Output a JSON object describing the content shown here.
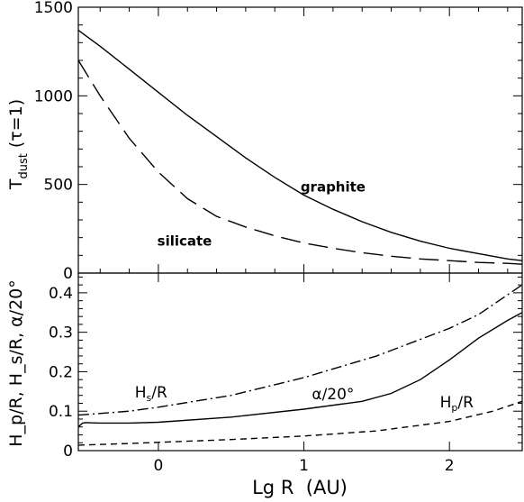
{
  "chart_data": [
    {
      "type": "line",
      "xlabel": "Lg R  (AU)",
      "ylabel": "T_dust (τ=1)",
      "ylabel_parts": {
        "main": "T",
        "sub": "dust",
        "rest": " (τ=1)"
      },
      "xlim": [
        -0.55,
        2.5
      ],
      "ylim": [
        0,
        1500
      ],
      "xticks_major": [
        0,
        1,
        2
      ],
      "xticks_minor": [
        -0.4,
        -0.2,
        0.2,
        0.4,
        0.6,
        0.8,
        1.2,
        1.4,
        1.6,
        1.8,
        2.2,
        2.4
      ],
      "yticks_major": [
        0,
        500,
        1000,
        1500
      ],
      "yticks_minor": [
        100,
        200,
        300,
        400,
        600,
        700,
        800,
        900,
        1100,
        1200,
        1300,
        1400
      ],
      "ytick_labels": [
        "0",
        "500",
        "1000",
        "1500"
      ],
      "series": [
        {
          "name": "graphite",
          "dash": "solid",
          "x": [
            -0.55,
            -0.4,
            -0.2,
            0.0,
            0.2,
            0.4,
            0.6,
            0.8,
            1.0,
            1.2,
            1.4,
            1.6,
            1.8,
            2.0,
            2.2,
            2.4,
            2.5
          ],
          "y": [
            1370,
            1280,
            1150,
            1020,
            890,
            770,
            650,
            540,
            440,
            360,
            290,
            230,
            180,
            140,
            110,
            80,
            70
          ]
        },
        {
          "name": "silicate",
          "dash": "long-dash",
          "x": [
            -0.55,
            -0.4,
            -0.2,
            0.0,
            0.2,
            0.4,
            0.6,
            0.8,
            1.0,
            1.2,
            1.4,
            1.6,
            1.8,
            2.0,
            2.2,
            2.4,
            2.5
          ],
          "y": [
            1200,
            1000,
            760,
            570,
            420,
            320,
            260,
            210,
            170,
            140,
            115,
            95,
            80,
            70,
            60,
            55,
            50
          ]
        }
      ],
      "annotations": [
        {
          "text": "graphite",
          "x": 1.2,
          "y": 460
        },
        {
          "text": "silicate",
          "x": 0.18,
          "y": 155
        }
      ]
    },
    {
      "type": "line",
      "xlabel": "Lg R  (AU)",
      "ylabel": "H_p/R, H_s/R, α/20°",
      "xlim": [
        -0.55,
        2.5
      ],
      "ylim": [
        0,
        0.45
      ],
      "xticks_major": [
        0,
        1,
        2
      ],
      "xtick_labels": [
        "0",
        "1",
        "2"
      ],
      "yticks_major": [
        0,
        0.1,
        0.2,
        0.3,
        0.4
      ],
      "yticks_minor": [
        0.02,
        0.04,
        0.06,
        0.08,
        0.12,
        0.14,
        0.16,
        0.18,
        0.22,
        0.24,
        0.26,
        0.28,
        0.32,
        0.34,
        0.36,
        0.38,
        0.42,
        0.44
      ],
      "ytick_labels": [
        "0",
        "0.1",
        "0.2",
        "0.3",
        "0.4"
      ],
      "series": [
        {
          "name": "Hs/R",
          "dash": "dash-dot",
          "x": [
            -0.55,
            -0.2,
            0.0,
            0.5,
            1.0,
            1.5,
            2.0,
            2.2,
            2.4,
            2.5
          ],
          "y": [
            0.09,
            0.1,
            0.11,
            0.14,
            0.185,
            0.24,
            0.31,
            0.345,
            0.395,
            0.42
          ]
        },
        {
          "name": "α/20°",
          "dash": "solid",
          "x": [
            -0.55,
            -0.52,
            -0.5,
            -0.4,
            -0.2,
            0.0,
            0.5,
            1.0,
            1.4,
            1.6,
            1.8,
            2.0,
            2.2,
            2.4,
            2.5
          ],
          "y": [
            0.06,
            0.07,
            0.071,
            0.07,
            0.07,
            0.072,
            0.085,
            0.105,
            0.125,
            0.145,
            0.18,
            0.23,
            0.285,
            0.33,
            0.35
          ]
        },
        {
          "name": "Hp/R",
          "dash": "short-dash",
          "x": [
            -0.55,
            -0.2,
            0.0,
            0.5,
            1.0,
            1.5,
            2.0,
            2.3,
            2.5
          ],
          "y": [
            0.014,
            0.018,
            0.021,
            0.028,
            0.037,
            0.05,
            0.074,
            0.1,
            0.125
          ]
        }
      ],
      "annotations": [
        {
          "text": "Hs/R",
          "parts": {
            "main": "H",
            "sub": "s",
            "rest": "/R"
          },
          "x": -0.05,
          "y": 0.135
        },
        {
          "text": "α/20°",
          "x": 1.2,
          "y": 0.13
        },
        {
          "text": "Hp/R",
          "parts": {
            "main": "H",
            "sub": "p",
            "rest": "/R"
          },
          "x": 2.05,
          "y": 0.11
        }
      ]
    }
  ]
}
